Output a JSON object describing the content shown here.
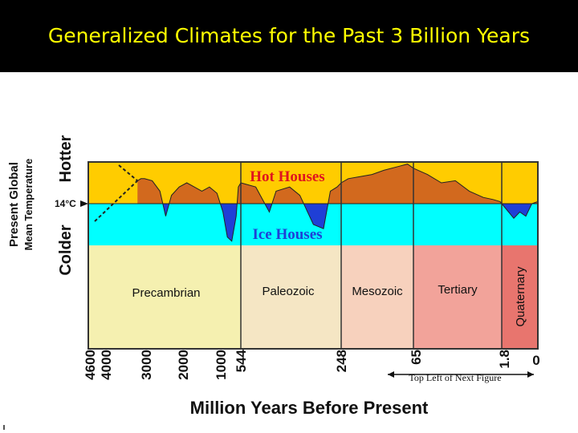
{
  "title": "Generalized Climates for the Past 3 Billion Years",
  "colors": {
    "title_bg": "#000000",
    "title_text": "#ffff00",
    "hot": "#ffcc00",
    "ice": "#00ffff",
    "curve_hot": "#d2691e",
    "curve_ice": "#1f3fd6",
    "precambrian": "#f5f0b0",
    "paleozoic": "#f5e6c4",
    "mesozoic": "#f7d1bd",
    "tertiary": "#f2a39a",
    "quaternary": "#e8756e"
  },
  "chart_data": {
    "type": "area",
    "title": "",
    "xlabel": "Million Years Before Present",
    "ylabel_outer": "Present Global Mean Temperature",
    "ylabel_hot": "Hotter",
    "ylabel_cold": "Colder",
    "baseline_label": "14°C",
    "zones": {
      "hot": "Hot Houses",
      "ice": "Ice Houses"
    },
    "x_ticks": [
      "4600",
      "4000",
      "3000",
      "2000",
      "1000",
      "544",
      "248",
      "65",
      "1.8",
      "0"
    ],
    "x_tick_values": [
      4600,
      4000,
      3000,
      2000,
      1000,
      544,
      248,
      65,
      1.8,
      0
    ],
    "eras": [
      {
        "name": "Precambrian",
        "from": 4600,
        "to": 544
      },
      {
        "name": "Paleozoic",
        "from": 544,
        "to": 248
      },
      {
        "name": "Mesozoic",
        "from": 248,
        "to": 65
      },
      {
        "name": "Tertiary",
        "from": 65,
        "to": 1.8
      },
      {
        "name": "Quaternary",
        "from": 1.8,
        "to": 0
      }
    ],
    "annotation": "Top Left of Next Figure",
    "temperature_anomaly_relative": [
      [
        3200,
        0.55
      ],
      [
        3100,
        0.6
      ],
      [
        3000,
        0.6
      ],
      [
        2800,
        0.55
      ],
      [
        2600,
        0.3
      ],
      [
        2450,
        -0.3
      ],
      [
        2300,
        0.2
      ],
      [
        2100,
        0.4
      ],
      [
        1900,
        0.5
      ],
      [
        1700,
        0.4
      ],
      [
        1500,
        0.3
      ],
      [
        1300,
        0.4
      ],
      [
        1100,
        0.25
      ],
      [
        950,
        -0.2
      ],
      [
        850,
        -0.8
      ],
      [
        750,
        -0.9
      ],
      [
        650,
        -0.3
      ],
      [
        600,
        0.4
      ],
      [
        544,
        0.5
      ],
      [
        500,
        0.4
      ],
      [
        460,
        -0.2
      ],
      [
        440,
        0.3
      ],
      [
        400,
        0.4
      ],
      [
        370,
        0.2
      ],
      [
        330,
        -0.5
      ],
      [
        300,
        -0.6
      ],
      [
        280,
        0.3
      ],
      [
        260,
        0.4
      ],
      [
        248,
        0.5
      ],
      [
        230,
        0.6
      ],
      [
        200,
        0.65
      ],
      [
        170,
        0.7
      ],
      [
        140,
        0.8
      ],
      [
        100,
        0.9
      ],
      [
        80,
        0.95
      ],
      [
        65,
        0.85
      ],
      [
        55,
        0.7
      ],
      [
        45,
        0.5
      ],
      [
        35,
        0.55
      ],
      [
        25,
        0.3
      ],
      [
        15,
        0.15
      ],
      [
        8,
        0.1
      ],
      [
        3,
        0.05
      ],
      [
        1.8,
        0.0
      ],
      [
        1.2,
        -0.35
      ],
      [
        0.9,
        -0.2
      ],
      [
        0.6,
        -0.3
      ],
      [
        0.3,
        0.0
      ],
      [
        0,
        0.05
      ]
    ],
    "y_range": [
      -1,
      1
    ]
  }
}
